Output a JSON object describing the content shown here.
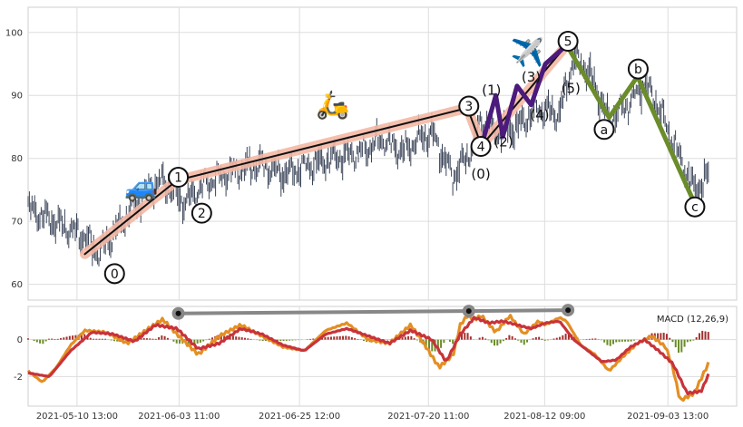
{
  "chart_data": [
    {
      "type": "line",
      "panel": "price",
      "ylim": [
        57.5,
        104
      ],
      "yticks": [
        60,
        70,
        80,
        90,
        100
      ],
      "grid": true,
      "x_range": [
        0,
        100
      ],
      "series": [
        {
          "name": "",
          "color": "#3a4458",
          "role": "price-bars",
          "anchors_x": [
            0,
            8,
            10,
            12,
            14,
            17,
            19,
            22,
            25,
            29,
            33,
            36,
            40,
            43,
            47,
            50,
            53,
            55,
            57,
            60,
            61,
            62,
            64,
            66,
            69,
            72,
            75,
            77,
            79,
            82,
            85,
            87,
            89,
            92,
            94,
            96
          ],
          "anchors_y": [
            72,
            67.5,
            65,
            68,
            71,
            75,
            76.5,
            73,
            76,
            78,
            79,
            77.5,
            79,
            80,
            81,
            83,
            81,
            83,
            84,
            77,
            79,
            80,
            86,
            84,
            85,
            88,
            87,
            96,
            94,
            86,
            89,
            92,
            88,
            80,
            75,
            77
          ]
        }
      ],
      "overlays": [
        {
          "kind": "band",
          "color": "#f4b8a5",
          "x": [
            8,
            21,
            62,
            64,
            76
          ],
          "y": [
            64.8,
            76.5,
            88,
            82,
            98
          ]
        },
        {
          "kind": "line",
          "color": "#111111",
          "x": [
            8,
            21,
            62,
            64,
            76
          ],
          "y": [
            64.8,
            76.5,
            88,
            82,
            98
          ]
        },
        {
          "kind": "wave",
          "color": "#4b1a7c",
          "x": [
            64,
            66,
            67,
            69,
            71,
            73,
            76
          ],
          "y": [
            82,
            90,
            83.5,
            91.5,
            88.5,
            95,
            98
          ]
        },
        {
          "kind": "wave",
          "color": "#6b8c2a",
          "x": [
            76,
            82,
            86,
            94
          ],
          "y": [
            98,
            86.5,
            93,
            73
          ]
        }
      ],
      "wave_labels": [
        {
          "text": "0",
          "x": 12.2,
          "y": 61.7,
          "circle": true
        },
        {
          "text": "1",
          "x": 21.2,
          "y": 77,
          "circle": true
        },
        {
          "text": "2",
          "x": 24.5,
          "y": 71.3,
          "circle": true
        },
        {
          "text": "3",
          "x": 62.2,
          "y": 88.3,
          "circle": true
        },
        {
          "text": "4",
          "x": 63.9,
          "y": 81.9,
          "circle": true
        },
        {
          "text": "5",
          "x": 76.2,
          "y": 98.6,
          "circle": true
        },
        {
          "text": "(0)",
          "x": 63.9,
          "y": 77.5,
          "circle": false
        },
        {
          "text": "(1)",
          "x": 65.4,
          "y": 90.8,
          "circle": false
        },
        {
          "text": "(2)",
          "x": 67.1,
          "y": 82.6,
          "circle": false
        },
        {
          "text": "(3)",
          "x": 71,
          "y": 92.9,
          "circle": false
        },
        {
          "text": "(4)",
          "x": 72.2,
          "y": 86.9,
          "circle": false
        },
        {
          "text": "(5)",
          "x": 76.6,
          "y": 91.1,
          "circle": false
        },
        {
          "text": "a",
          "x": 81.3,
          "y": 84.6,
          "circle": true
        },
        {
          "text": "b",
          "x": 86.1,
          "y": 94.2,
          "circle": true
        },
        {
          "text": "c",
          "x": 94.1,
          "y": 72.3,
          "circle": true
        }
      ],
      "pictograms": [
        {
          "name": "car-icon",
          "glyph": "🚙",
          "x": 16,
          "y": 75.5
        },
        {
          "name": "scooter-icon",
          "glyph": "🛵",
          "x": 43,
          "y": 88.5
        },
        {
          "name": "airplane-icon",
          "glyph": "✈️",
          "x": 70.5,
          "y": 96.8
        }
      ]
    },
    {
      "type": "bar",
      "panel": "macd",
      "title": "MACD (12,26,9)",
      "ylim": [
        -3.6,
        1.8
      ],
      "yticks": [
        -2,
        0
      ],
      "grid": true,
      "xticks": [
        "2021-05-10 13:00",
        "2021-06-03 11:00",
        "2021-06-25 12:00",
        "2021-07-20 11:00",
        "2021-08-12 09:00",
        "2021-09-03 13:00"
      ],
      "xtick_positions": [
        6.9,
        21.3,
        38.3,
        56.5,
        72.9,
        90.3
      ],
      "colors": {
        "macd": "#e38f24",
        "signal": "#c8333a",
        "hist_pos": "#a3302e",
        "hist_neg": "#6b8c2a",
        "divergence": "#888888"
      },
      "macd_anchors_x": [
        0,
        2,
        4,
        6,
        8,
        11,
        14,
        17,
        19,
        21,
        24,
        27,
        30,
        33,
        36,
        39,
        42,
        45,
        48,
        51,
        54,
        56,
        58,
        60,
        61,
        62,
        63,
        64,
        66,
        68,
        70,
        72,
        73,
        75,
        76,
        78,
        80,
        82,
        84,
        86,
        88,
        90,
        91,
        92,
        94,
        96
      ],
      "macd_anchors_y": [
        -1.7,
        -2.3,
        -1.5,
        -0.3,
        0.5,
        0.4,
        -0.2,
        0.6,
        1.1,
        0.3,
        -0.8,
        0.2,
        0.8,
        0.2,
        -0.4,
        -0.6,
        0.5,
        0.9,
        0.0,
        -0.2,
        0.8,
        -0.3,
        -1.5,
        -0.8,
        0.8,
        1.3,
        1.1,
        1.3,
        0.4,
        1.3,
        0.3,
        1.0,
        0.8,
        1.2,
        1.0,
        -0.3,
        -0.8,
        -1.7,
        -0.9,
        -0.2,
        0.2,
        -0.4,
        -1.5,
        -3.3,
        -2.9,
        -1.3
      ],
      "signal_anchors_x": [
        0,
        3,
        6,
        9,
        12,
        15,
        18,
        21,
        24,
        27,
        30,
        33,
        36,
        39,
        42,
        45,
        48,
        51,
        54,
        57,
        59,
        61,
        63,
        65,
        67,
        69,
        71,
        73,
        75,
        77,
        79,
        81,
        83,
        85,
        87,
        89,
        91,
        93,
        95,
        96
      ],
      "signal_anchors_y": [
        -1.8,
        -2.0,
        -0.6,
        0.4,
        0.3,
        -0.1,
        0.8,
        0.6,
        -0.5,
        -0.2,
        0.6,
        0.3,
        -0.3,
        -0.6,
        0.3,
        0.6,
        0.2,
        -0.2,
        0.5,
        0.0,
        -1.2,
        0.3,
        1.2,
        0.9,
        1.0,
        0.8,
        0.6,
        0.9,
        1.0,
        0.0,
        -0.6,
        -1.2,
        -1.1,
        -0.4,
        0.0,
        -0.6,
        -1.3,
        -2.9,
        -2.8,
        -1.9
      ],
      "divergence_line": {
        "x": [
          21.2,
          62.2,
          76.2
        ],
        "y": [
          1.42,
          1.55,
          1.6
        ]
      }
    }
  ]
}
